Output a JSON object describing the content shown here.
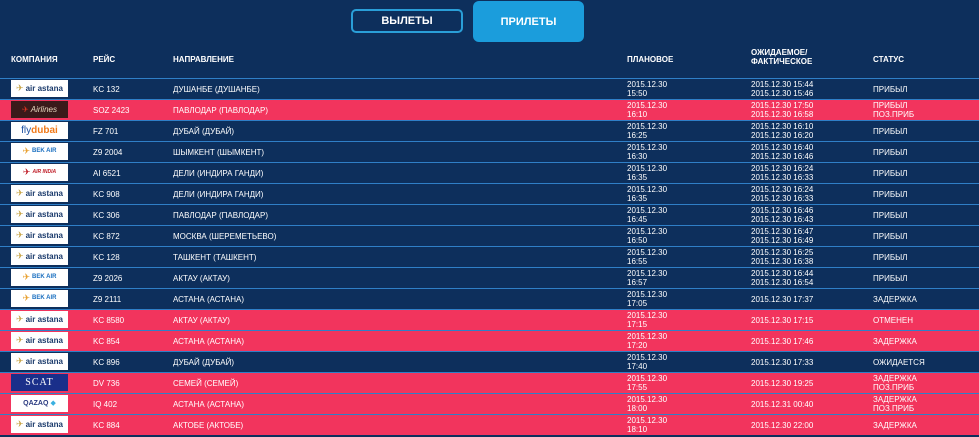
{
  "tabs": {
    "departures": "ВЫЛЕТЫ",
    "arrivals": "ПРИЛЕТЫ"
  },
  "headers": {
    "company": "КОМПАНИЯ",
    "flight": "РЕЙС",
    "direction": "НАПРАВЛЕНИЕ",
    "scheduled": "ПЛАНОВОЕ",
    "expected_line1": "ОЖИДАЕМОЕ/",
    "expected_line2": "ФАКТИЧЕСКОЕ",
    "status": "СТАТУС"
  },
  "colors": {
    "background": "#0d2f5c",
    "alert_row": "#f2345d",
    "accent": "#1b9ddc",
    "row_border": "#2f7fc7"
  },
  "rows": [
    {
      "logo": "air astana",
      "logo_class": "air-astana",
      "flight": "KC 132",
      "dest": "ДУШАНБЕ (ДУШАНБЕ)",
      "sched1": "2015.12.30",
      "sched2": "15:50",
      "est1": "2015.12.30 15:44",
      "est2": "2015.12.30 15:46",
      "status1": "ПРИБЫЛ",
      "status2": "",
      "alert": false
    },
    {
      "logo": "Airlines",
      "logo_class": "scat-airlines",
      "flight": "SOZ 2423",
      "dest": "ПАВЛОДАР (ПАВЛОДАР)",
      "sched1": "2015.12.30",
      "sched2": "16:10",
      "est1": "2015.12.30 17:50",
      "est2": "2015.12.30 16:58",
      "status1": "ПРИБЫЛ",
      "status2": "ПОЗ.ПРИБ",
      "alert": true
    },
    {
      "logo": "flydubai",
      "logo_class": "fly-dubai",
      "flight": "FZ 701",
      "dest": "ДУБАЙ (ДУБАЙ)",
      "sched1": "2015.12.30",
      "sched2": "16:25",
      "est1": "2015.12.30 16:10",
      "est2": "2015.12.30 16:20",
      "status1": "ПРИБЫЛ",
      "status2": "",
      "alert": false
    },
    {
      "logo": "BEK AIR",
      "logo_class": "bek-air",
      "flight": "Z9 2004",
      "dest": "ШЫМКЕНТ (ШЫМКЕНТ)",
      "sched1": "2015.12.30",
      "sched2": "16:30",
      "est1": "2015.12.30 16:40",
      "est2": "2015.12.30 16:46",
      "status1": "ПРИБЫЛ",
      "status2": "",
      "alert": false
    },
    {
      "logo": "AIR INDIA",
      "logo_class": "air-india",
      "flight": "AI 6521",
      "dest": "ДЕЛИ (ИНДИРА ГАНДИ)",
      "sched1": "2015.12.30",
      "sched2": "16:35",
      "est1": "2015.12.30 16:24",
      "est2": "2015.12.30 16:33",
      "status1": "ПРИБЫЛ",
      "status2": "",
      "alert": false
    },
    {
      "logo": "air astana",
      "logo_class": "air-astana",
      "flight": "KC 908",
      "dest": "ДЕЛИ (ИНДИРА ГАНДИ)",
      "sched1": "2015.12.30",
      "sched2": "16:35",
      "est1": "2015.12.30 16:24",
      "est2": "2015.12.30 16:33",
      "status1": "ПРИБЫЛ",
      "status2": "",
      "alert": false
    },
    {
      "logo": "air astana",
      "logo_class": "air-astana",
      "flight": "KC 306",
      "dest": "ПАВЛОДАР (ПАВЛОДАР)",
      "sched1": "2015.12.30",
      "sched2": "16:45",
      "est1": "2015.12.30 16:46",
      "est2": "2015.12.30 16:43",
      "status1": "ПРИБЫЛ",
      "status2": "",
      "alert": false
    },
    {
      "logo": "air astana",
      "logo_class": "air-astana",
      "flight": "KC 872",
      "dest": "МОСКВА (ШЕРЕМЕТЬЕВО)",
      "sched1": "2015.12.30",
      "sched2": "16:50",
      "est1": "2015.12.30 16:47",
      "est2": "2015.12.30 16:49",
      "status1": "ПРИБЫЛ",
      "status2": "",
      "alert": false
    },
    {
      "logo": "air astana",
      "logo_class": "air-astana",
      "flight": "KC 128",
      "dest": "ТАШКЕНТ (ТАШКЕНТ)",
      "sched1": "2015.12.30",
      "sched2": "16:55",
      "est1": "2015.12.30 16:25",
      "est2": "2015.12.30 16:38",
      "status1": "ПРИБЫЛ",
      "status2": "",
      "alert": false
    },
    {
      "logo": "BEK AIR",
      "logo_class": "bek-air",
      "flight": "Z9 2026",
      "dest": "АКТАУ (АКТАУ)",
      "sched1": "2015.12.30",
      "sched2": "16:57",
      "est1": "2015.12.30 16:44",
      "est2": "2015.12.30 16:54",
      "status1": "ПРИБЫЛ",
      "status2": "",
      "alert": false
    },
    {
      "logo": "BEK AIR",
      "logo_class": "bek-air",
      "flight": "Z9 2111",
      "dest": "АСТАНА (АСТАНА)",
      "sched1": "2015.12.30",
      "sched2": "17:05",
      "est1": "2015.12.30 17:37",
      "est2": "",
      "status1": "ЗАДЕРЖКА",
      "status2": "",
      "alert": false
    },
    {
      "logo": "air astana",
      "logo_class": "air-astana",
      "flight": "KC 8580",
      "dest": "АКТАУ (АКТАУ)",
      "sched1": "2015.12.30",
      "sched2": "17:15",
      "est1": "2015.12.30 17:15",
      "est2": "",
      "status1": "ОТМЕНЕН",
      "status2": "",
      "alert": true
    },
    {
      "logo": "air astana",
      "logo_class": "air-astana",
      "flight": "KC 854",
      "dest": "АСТАНА (АСТАНА)",
      "sched1": "2015.12.30",
      "sched2": "17:20",
      "est1": "2015.12.30 17:46",
      "est2": "",
      "status1": "ЗАДЕРЖКА",
      "status2": "",
      "alert": true
    },
    {
      "logo": "air astana",
      "logo_class": "air-astana",
      "flight": "KC 896",
      "dest": "ДУБАЙ (ДУБАЙ)",
      "sched1": "2015.12.30",
      "sched2": "17:40",
      "est1": "2015.12.30 17:33",
      "est2": "",
      "status1": "ОЖИДАЕТСЯ",
      "status2": "",
      "alert": false
    },
    {
      "logo": "SCAT",
      "logo_class": "scat-blue",
      "flight": "DV 736",
      "dest": "СЕМЕЙ (СЕМЕЙ)",
      "sched1": "2015.12.30",
      "sched2": "17:55",
      "est1": "2015.12.30 19:25",
      "est2": "",
      "status1": "ЗАДЕРЖКА",
      "status2": "ПОЗ.ПРИБ",
      "alert": true
    },
    {
      "logo": "QAZAQ",
      "logo_class": "qazaq",
      "flight": "IQ 402",
      "dest": "АСТАНА (АСТАНА)",
      "sched1": "2015.12.30",
      "sched2": "18:00",
      "est1": "2015.12.31 00:40",
      "est2": "",
      "status1": "ЗАДЕРЖКА",
      "status2": "ПОЗ.ПРИБ",
      "alert": true
    },
    {
      "logo": "air astana",
      "logo_class": "air-astana",
      "flight": "KC 884",
      "dest": "АКТОБЕ (АКТОБЕ)",
      "sched1": "2015.12.30",
      "sched2": "18:10",
      "est1": "2015.12.30 22:00",
      "est2": "",
      "status1": "ЗАДЕРЖКА",
      "status2": "",
      "alert": true
    }
  ]
}
